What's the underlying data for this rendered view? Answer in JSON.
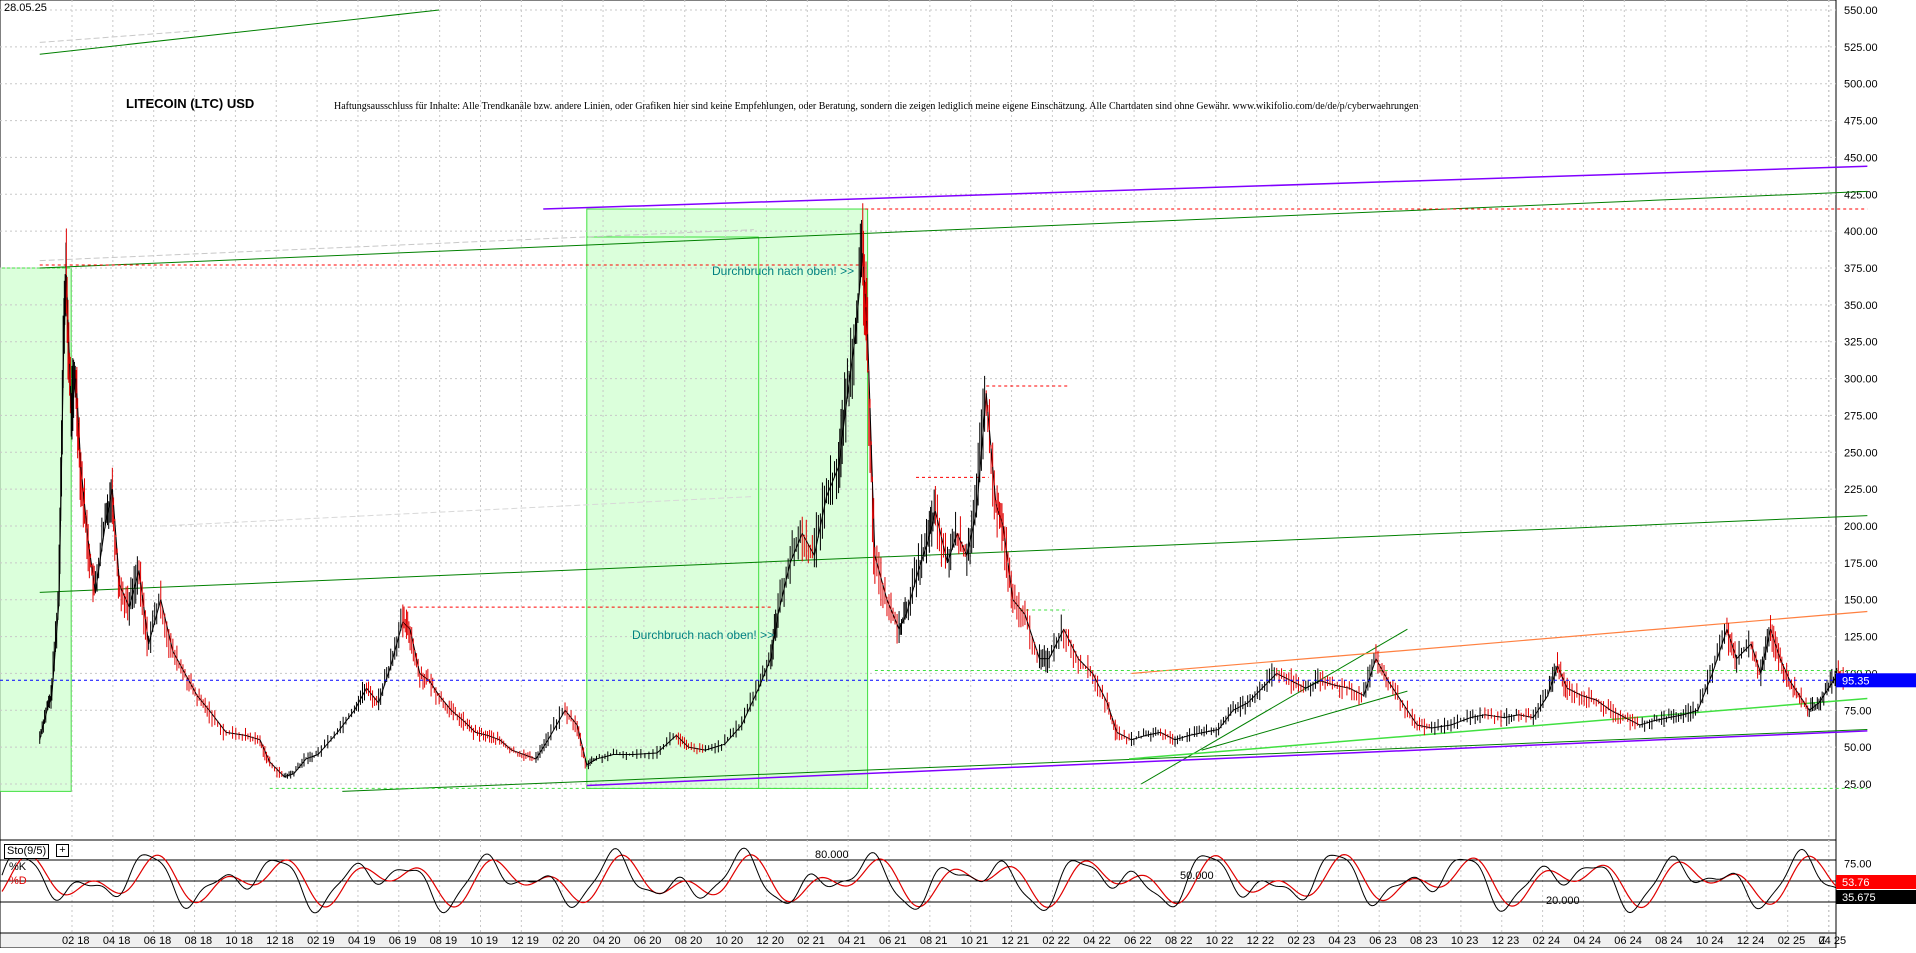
{
  "header": {
    "date": "28.05.25",
    "title": "LITECOIN (LTC) USD",
    "disclaimer": "Haftungsausschluss für Inhalte: Alle Trendkanäle bzw. andere Linien, oder Grafiken hier sind keine Empfehlungen, oder Beratung, sondern die zeigen lediglich meine eigene Einschätzung. Alle Chartdaten sind ohne Gewähr. www.wikifolio.com/de/de/p/cyberwaehrungen"
  },
  "annotations": {
    "breakout_upper": "Durchbruch nach oben! >>",
    "breakout_lower": "Durchbruch nach oben! >>"
  },
  "indicator": {
    "name": "Sto(9/5)",
    "k_label": "%K",
    "d_label": "%D",
    "levels": [
      "80.000",
      "50.000",
      "20.000"
    ],
    "k_value": "53.76",
    "d_value": "35.675"
  },
  "colors": {
    "price_up": "#000000",
    "price_down": "#e00000",
    "trend_green": "#008000",
    "trend_purple": "#8000ff",
    "trend_orange": "#ff8040",
    "zone_fill": "#ccffcc",
    "resistance_red": "#ff0000",
    "current_price": "#0000ff"
  },
  "chart_data": {
    "type": "line",
    "title": "LITECOIN (LTC) USD",
    "xlabel": "",
    "ylabel": "",
    "ylim": [
      0,
      555
    ],
    "y_ticks": [
      "550.00",
      "525.00",
      "500.00",
      "475.00",
      "450.00",
      "425.00",
      "400.00",
      "375.00",
      "350.00",
      "325.00",
      "300.00",
      "275.00",
      "250.00",
      "225.00",
      "200.00",
      "175.00",
      "150.00",
      "125.00",
      "100.00",
      "75.00",
      "50.00",
      "25.00"
    ],
    "x_ticks": [
      "02 18",
      "04 18",
      "06 18",
      "08 18",
      "10 18",
      "12 18",
      "02 19",
      "04 19",
      "06 19",
      "08 19",
      "10 19",
      "12 19",
      "02 20",
      "04 20",
      "06 20",
      "08 20",
      "10 20",
      "12 20",
      "02 21",
      "04 21",
      "06 21",
      "08 21",
      "10 21",
      "12 21",
      "02 22",
      "04 22",
      "06 22",
      "08 22",
      "10 22",
      "12 22",
      "02 23",
      "04 23",
      "06 23",
      "08 23",
      "10 23",
      "12 23",
      "02 24",
      "04 24",
      "06 24",
      "08 24",
      "10 24",
      "12 24",
      "02 25",
      "04 25",
      "Z"
    ],
    "current_price": "95.35",
    "grid": true,
    "series": [
      {
        "name": "LITECOIN (LTC) USD",
        "points": [
          [
            2017.95,
            55
          ],
          [
            2017.98,
            75
          ],
          [
            2018.0,
            85
          ],
          [
            2018.03,
            150
          ],
          [
            2018.05,
            330
          ],
          [
            2018.06,
            370
          ],
          [
            2018.08,
            280
          ],
          [
            2018.1,
            300
          ],
          [
            2018.12,
            240
          ],
          [
            2018.15,
            190
          ],
          [
            2018.18,
            155
          ],
          [
            2018.22,
            200
          ],
          [
            2018.25,
            225
          ],
          [
            2018.28,
            160
          ],
          [
            2018.32,
            145
          ],
          [
            2018.36,
            170
          ],
          [
            2018.4,
            120
          ],
          [
            2018.45,
            150
          ],
          [
            2018.5,
            115
          ],
          [
            2018.55,
            100
          ],
          [
            2018.6,
            85
          ],
          [
            2018.65,
            75
          ],
          [
            2018.72,
            60
          ],
          [
            2018.8,
            58
          ],
          [
            2018.86,
            55
          ],
          [
            2018.9,
            40
          ],
          [
            2018.96,
            30
          ],
          [
            2019.0,
            32
          ],
          [
            2019.05,
            42
          ],
          [
            2019.1,
            45
          ],
          [
            2019.18,
            60
          ],
          [
            2019.25,
            75
          ],
          [
            2019.3,
            90
          ],
          [
            2019.35,
            80
          ],
          [
            2019.4,
            105
          ],
          [
            2019.45,
            135
          ],
          [
            2019.48,
            130
          ],
          [
            2019.52,
            100
          ],
          [
            2019.56,
            95
          ],
          [
            2019.6,
            85
          ],
          [
            2019.65,
            75
          ],
          [
            2019.7,
            68
          ],
          [
            2019.75,
            60
          ],
          [
            2019.8,
            58
          ],
          [
            2019.85,
            55
          ],
          [
            2019.9,
            48
          ],
          [
            2019.95,
            45
          ],
          [
            2020.0,
            42
          ],
          [
            2020.05,
            55
          ],
          [
            2020.12,
            75
          ],
          [
            2020.17,
            65
          ],
          [
            2020.21,
            38
          ],
          [
            2020.25,
            42
          ],
          [
            2020.32,
            45
          ],
          [
            2020.4,
            45
          ],
          [
            2020.5,
            46
          ],
          [
            2020.58,
            58
          ],
          [
            2020.63,
            50
          ],
          [
            2020.7,
            48
          ],
          [
            2020.78,
            52
          ],
          [
            2020.85,
            65
          ],
          [
            2020.92,
            90
          ],
          [
            2020.97,
            110
          ],
          [
            2021.0,
            140
          ],
          [
            2021.05,
            175
          ],
          [
            2021.1,
            195
          ],
          [
            2021.15,
            180
          ],
          [
            2021.2,
            220
          ],
          [
            2021.25,
            240
          ],
          [
            2021.28,
            280
          ],
          [
            2021.32,
            330
          ],
          [
            2021.35,
            385
          ],
          [
            2021.37,
            330
          ],
          [
            2021.4,
            180
          ],
          [
            2021.45,
            150
          ],
          [
            2021.5,
            130
          ],
          [
            2021.53,
            140
          ],
          [
            2021.58,
            170
          ],
          [
            2021.62,
            190
          ],
          [
            2021.65,
            210
          ],
          [
            2021.7,
            175
          ],
          [
            2021.74,
            195
          ],
          [
            2021.78,
            180
          ],
          [
            2021.82,
            210
          ],
          [
            2021.86,
            290
          ],
          [
            2021.9,
            215
          ],
          [
            2021.93,
            200
          ],
          [
            2021.97,
            150
          ],
          [
            2022.02,
            140
          ],
          [
            2022.08,
            110
          ],
          [
            2022.12,
            110
          ],
          [
            2022.18,
            130
          ],
          [
            2022.24,
            110
          ],
          [
            2022.3,
            100
          ],
          [
            2022.36,
            80
          ],
          [
            2022.4,
            60
          ],
          [
            2022.46,
            55
          ],
          [
            2022.52,
            58
          ],
          [
            2022.58,
            60
          ],
          [
            2022.64,
            55
          ],
          [
            2022.7,
            58
          ],
          [
            2022.76,
            60
          ],
          [
            2022.82,
            62
          ],
          [
            2022.88,
            75
          ],
          [
            2022.94,
            80
          ],
          [
            2023.0,
            90
          ],
          [
            2023.06,
            100
          ],
          [
            2023.12,
            95
          ],
          [
            2023.18,
            90
          ],
          [
            2023.24,
            95
          ],
          [
            2023.3,
            92
          ],
          [
            2023.36,
            90
          ],
          [
            2023.42,
            85
          ],
          [
            2023.47,
            110
          ],
          [
            2023.52,
            95
          ],
          [
            2023.58,
            80
          ],
          [
            2023.64,
            65
          ],
          [
            2023.7,
            63
          ],
          [
            2023.78,
            65
          ],
          [
            2023.86,
            70
          ],
          [
            2023.92,
            72
          ],
          [
            2024.0,
            70
          ],
          [
            2024.06,
            72
          ],
          [
            2024.12,
            70
          ],
          [
            2024.18,
            85
          ],
          [
            2024.22,
            105
          ],
          [
            2024.26,
            90
          ],
          [
            2024.32,
            85
          ],
          [
            2024.38,
            82
          ],
          [
            2024.44,
            75
          ],
          [
            2024.5,
            70
          ],
          [
            2024.56,
            65
          ],
          [
            2024.62,
            68
          ],
          [
            2024.68,
            70
          ],
          [
            2024.74,
            72
          ],
          [
            2024.8,
            75
          ],
          [
            2024.86,
            100
          ],
          [
            2024.92,
            130
          ],
          [
            2024.96,
            110
          ],
          [
            2025.02,
            120
          ],
          [
            2025.06,
            100
          ],
          [
            2025.1,
            130
          ],
          [
            2025.14,
            110
          ],
          [
            2025.18,
            95
          ],
          [
            2025.22,
            85
          ],
          [
            2025.26,
            75
          ],
          [
            2025.3,
            80
          ],
          [
            2025.34,
            90
          ],
          [
            2025.38,
            100
          ],
          [
            2025.41,
            95
          ]
        ]
      }
    ]
  }
}
